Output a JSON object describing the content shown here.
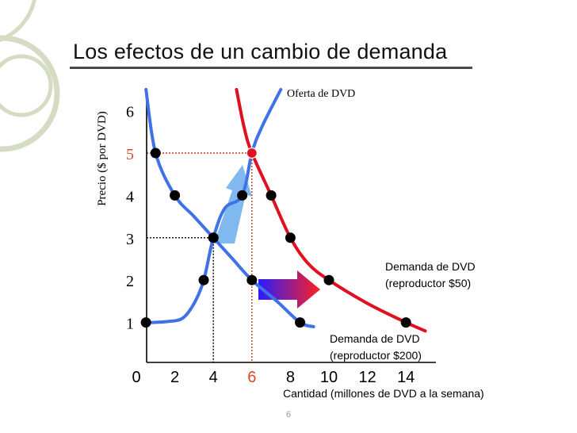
{
  "slide": {
    "title": "Los efectos de un cambio de demanda",
    "page_number": "6",
    "colors": {
      "demand_new": "#e01020",
      "curves_blue": "#3f72e6",
      "shift_arrow": "#ff2020",
      "highlight_label": "#d9472b",
      "decor_circles": "#d4ddc4"
    }
  },
  "chart_data": {
    "type": "line",
    "ylabel": "Precio ($ por DVD)",
    "xlabel": "Cantidad (millones de DVD a la semana)",
    "x_ticks": [
      "0",
      "2",
      "4",
      "6",
      "8",
      "10",
      "12",
      "14"
    ],
    "y_ticks": [
      "1",
      "2",
      "3",
      "4",
      "5",
      "6"
    ],
    "highlight": {
      "x_tick": "6",
      "y_tick": "5"
    },
    "xlim": [
      0,
      14
    ],
    "ylim": [
      0,
      6.5
    ],
    "series": [
      {
        "name": "Oferta de DVD",
        "color": "#3f72e6",
        "points": [
          [
            0.5,
            1
          ],
          [
            3.5,
            2
          ],
          [
            4,
            3
          ],
          [
            5.5,
            4
          ],
          [
            6,
            5
          ]
        ],
        "curve": [
          [
            0.8,
            1
          ],
          [
            1.6,
            1.02
          ],
          [
            2.4,
            1.1
          ],
          [
            3.0,
            1.45
          ],
          [
            3.5,
            2
          ],
          [
            4,
            3
          ],
          [
            4.6,
            3.7
          ],
          [
            5.5,
            4
          ],
          [
            6,
            5
          ],
          [
            6.5,
            5.6
          ],
          [
            7.5,
            6.5
          ]
        ]
      },
      {
        "name": "Demanda de DVD (reproductor $200)",
        "color": "#3f72e6",
        "points": [
          [
            1,
            5
          ],
          [
            2,
            4
          ],
          [
            4,
            3
          ],
          [
            6,
            2
          ],
          [
            8.5,
            1
          ]
        ],
        "curve": [
          [
            0.5,
            6.5
          ],
          [
            1,
            5
          ],
          [
            2,
            4
          ],
          [
            3,
            3.5
          ],
          [
            4,
            3
          ],
          [
            5,
            2.5
          ],
          [
            6,
            2
          ],
          [
            7.3,
            1.5
          ],
          [
            8.5,
            1
          ],
          [
            9.2,
            0.9
          ]
        ]
      },
      {
        "name": "Demanda de DVD (reproductor $50)",
        "color": "#e01020",
        "points": [
          [
            6,
            5
          ],
          [
            7,
            4
          ],
          [
            8,
            3
          ],
          [
            10,
            2
          ],
          [
            14,
            1
          ]
        ],
        "curve": [
          [
            5.2,
            6.5
          ],
          [
            5.6,
            5.6
          ],
          [
            6,
            5
          ],
          [
            7,
            4
          ],
          [
            8,
            3
          ],
          [
            8.9,
            2.4
          ],
          [
            10,
            2
          ],
          [
            12,
            1.45
          ],
          [
            14,
            1
          ],
          [
            15,
            0.8
          ]
        ]
      }
    ],
    "equilibria": [
      {
        "x": 4,
        "y": 3,
        "guide_color": "#000000"
      },
      {
        "x": 6,
        "y": 5,
        "guide_color": "#c0392b"
      }
    ],
    "annotations": {
      "supply_label": "Oferta de DVD",
      "demand_original_line1": "Demanda de DVD",
      "demand_original_line2": "(reproductor $200)",
      "demand_new_line1": "Demanda de DVD",
      "demand_new_line2": "(reproductor $50)"
    },
    "grid": false,
    "legend": "none"
  }
}
